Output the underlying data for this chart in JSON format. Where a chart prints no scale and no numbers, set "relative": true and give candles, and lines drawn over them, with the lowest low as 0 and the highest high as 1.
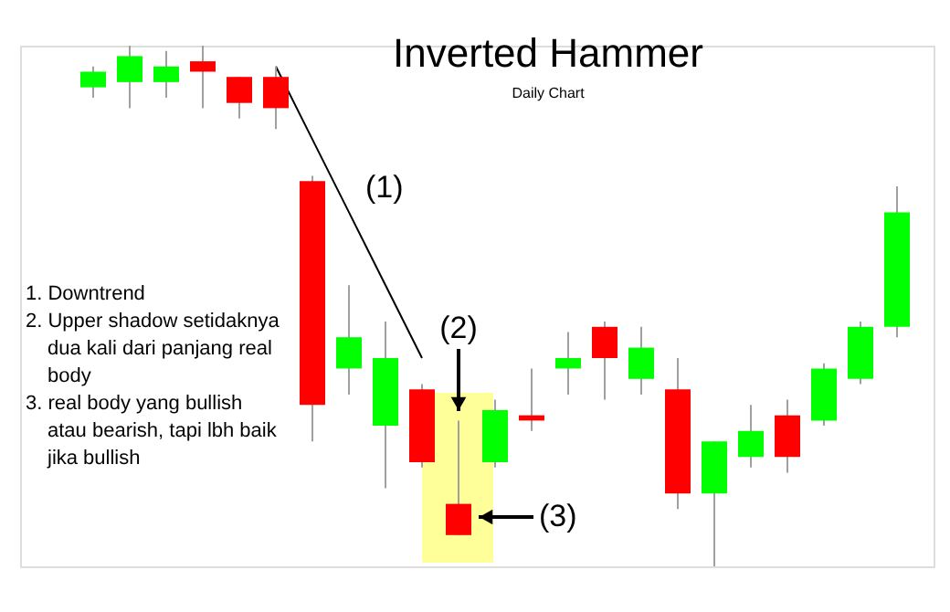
{
  "chart_data": {
    "type": "candlestick",
    "title": "Inverted Hammer",
    "subtitle": "Daily Chart",
    "relative": true,
    "tick_labels": false,
    "categories": [
      null,
      null,
      null,
      null,
      null,
      null,
      null,
      null,
      null,
      null,
      null,
      null,
      null,
      null,
      null,
      null,
      null,
      null,
      null,
      null,
      null,
      null,
      null
    ],
    "ohlc": [
      [
        0.92,
        0.96,
        0.9,
        0.95
      ],
      [
        0.93,
        1.0,
        0.88,
        0.98
      ],
      [
        0.93,
        0.99,
        0.9,
        0.96
      ],
      [
        0.97,
        1.0,
        0.88,
        0.95
      ],
      [
        0.94,
        0.94,
        0.86,
        0.89
      ],
      [
        0.94,
        0.96,
        0.84,
        0.88
      ],
      [
        0.74,
        0.75,
        0.24,
        0.31
      ],
      [
        0.38,
        0.54,
        0.33,
        0.44
      ],
      [
        0.27,
        0.47,
        0.15,
        0.4
      ],
      [
        0.34,
        0.35,
        0.19,
        0.2
      ],
      [
        0.12,
        0.28,
        0.06,
        0.06
      ],
      [
        0.2,
        0.32,
        0.19,
        0.3
      ],
      [
        0.29,
        0.38,
        0.26,
        0.28
      ],
      [
        0.38,
        0.45,
        0.33,
        0.4
      ],
      [
        0.46,
        0.47,
        0.32,
        0.4
      ],
      [
        0.36,
        0.46,
        0.33,
        0.42
      ],
      [
        0.34,
        0.4,
        0.11,
        0.14
      ],
      [
        0.14,
        0.24,
        0.0,
        0.24
      ],
      [
        0.21,
        0.31,
        0.19,
        0.26
      ],
      [
        0.29,
        0.32,
        0.18,
        0.21
      ],
      [
        0.28,
        0.39,
        0.27,
        0.38
      ],
      [
        0.36,
        0.47,
        0.35,
        0.46
      ],
      [
        0.46,
        0.73,
        0.44,
        0.68
      ]
    ],
    "colors": [
      "#00ff00",
      "#00ff00",
      "#00ff00",
      "#ff0000",
      "#ff0000",
      "#ff0000",
      "#ff0000",
      "#00ff00",
      "#00ff00",
      "#ff0000",
      "#ff0000",
      "#00ff00",
      "#ff0000",
      "#00ff00",
      "#ff0000",
      "#00ff00",
      "#ff0000",
      "#00ff00",
      "#00ff00",
      "#ff0000",
      "#00ff00",
      "#00ff00",
      "#00ff00"
    ],
    "series": [
      {
        "type": "line",
        "color": "#000000",
        "values": [
          null,
          null,
          null,
          null,
          null,
          0.96,
          0.82,
          0.68,
          0.54,
          0.4,
          null,
          null,
          null,
          null,
          null,
          null,
          null,
          null,
          null,
          null,
          null,
          null,
          null
        ]
      }
    ],
    "annotations": [
      "(1)",
      "(2)",
      "(3)",
      "1. Downtrend",
      "2. Upper shadow setidaknya dua kali dari panjang real body",
      "3. real body yang bullish atau bearish, tapi lbh baik jika bullish"
    ]
  }
}
